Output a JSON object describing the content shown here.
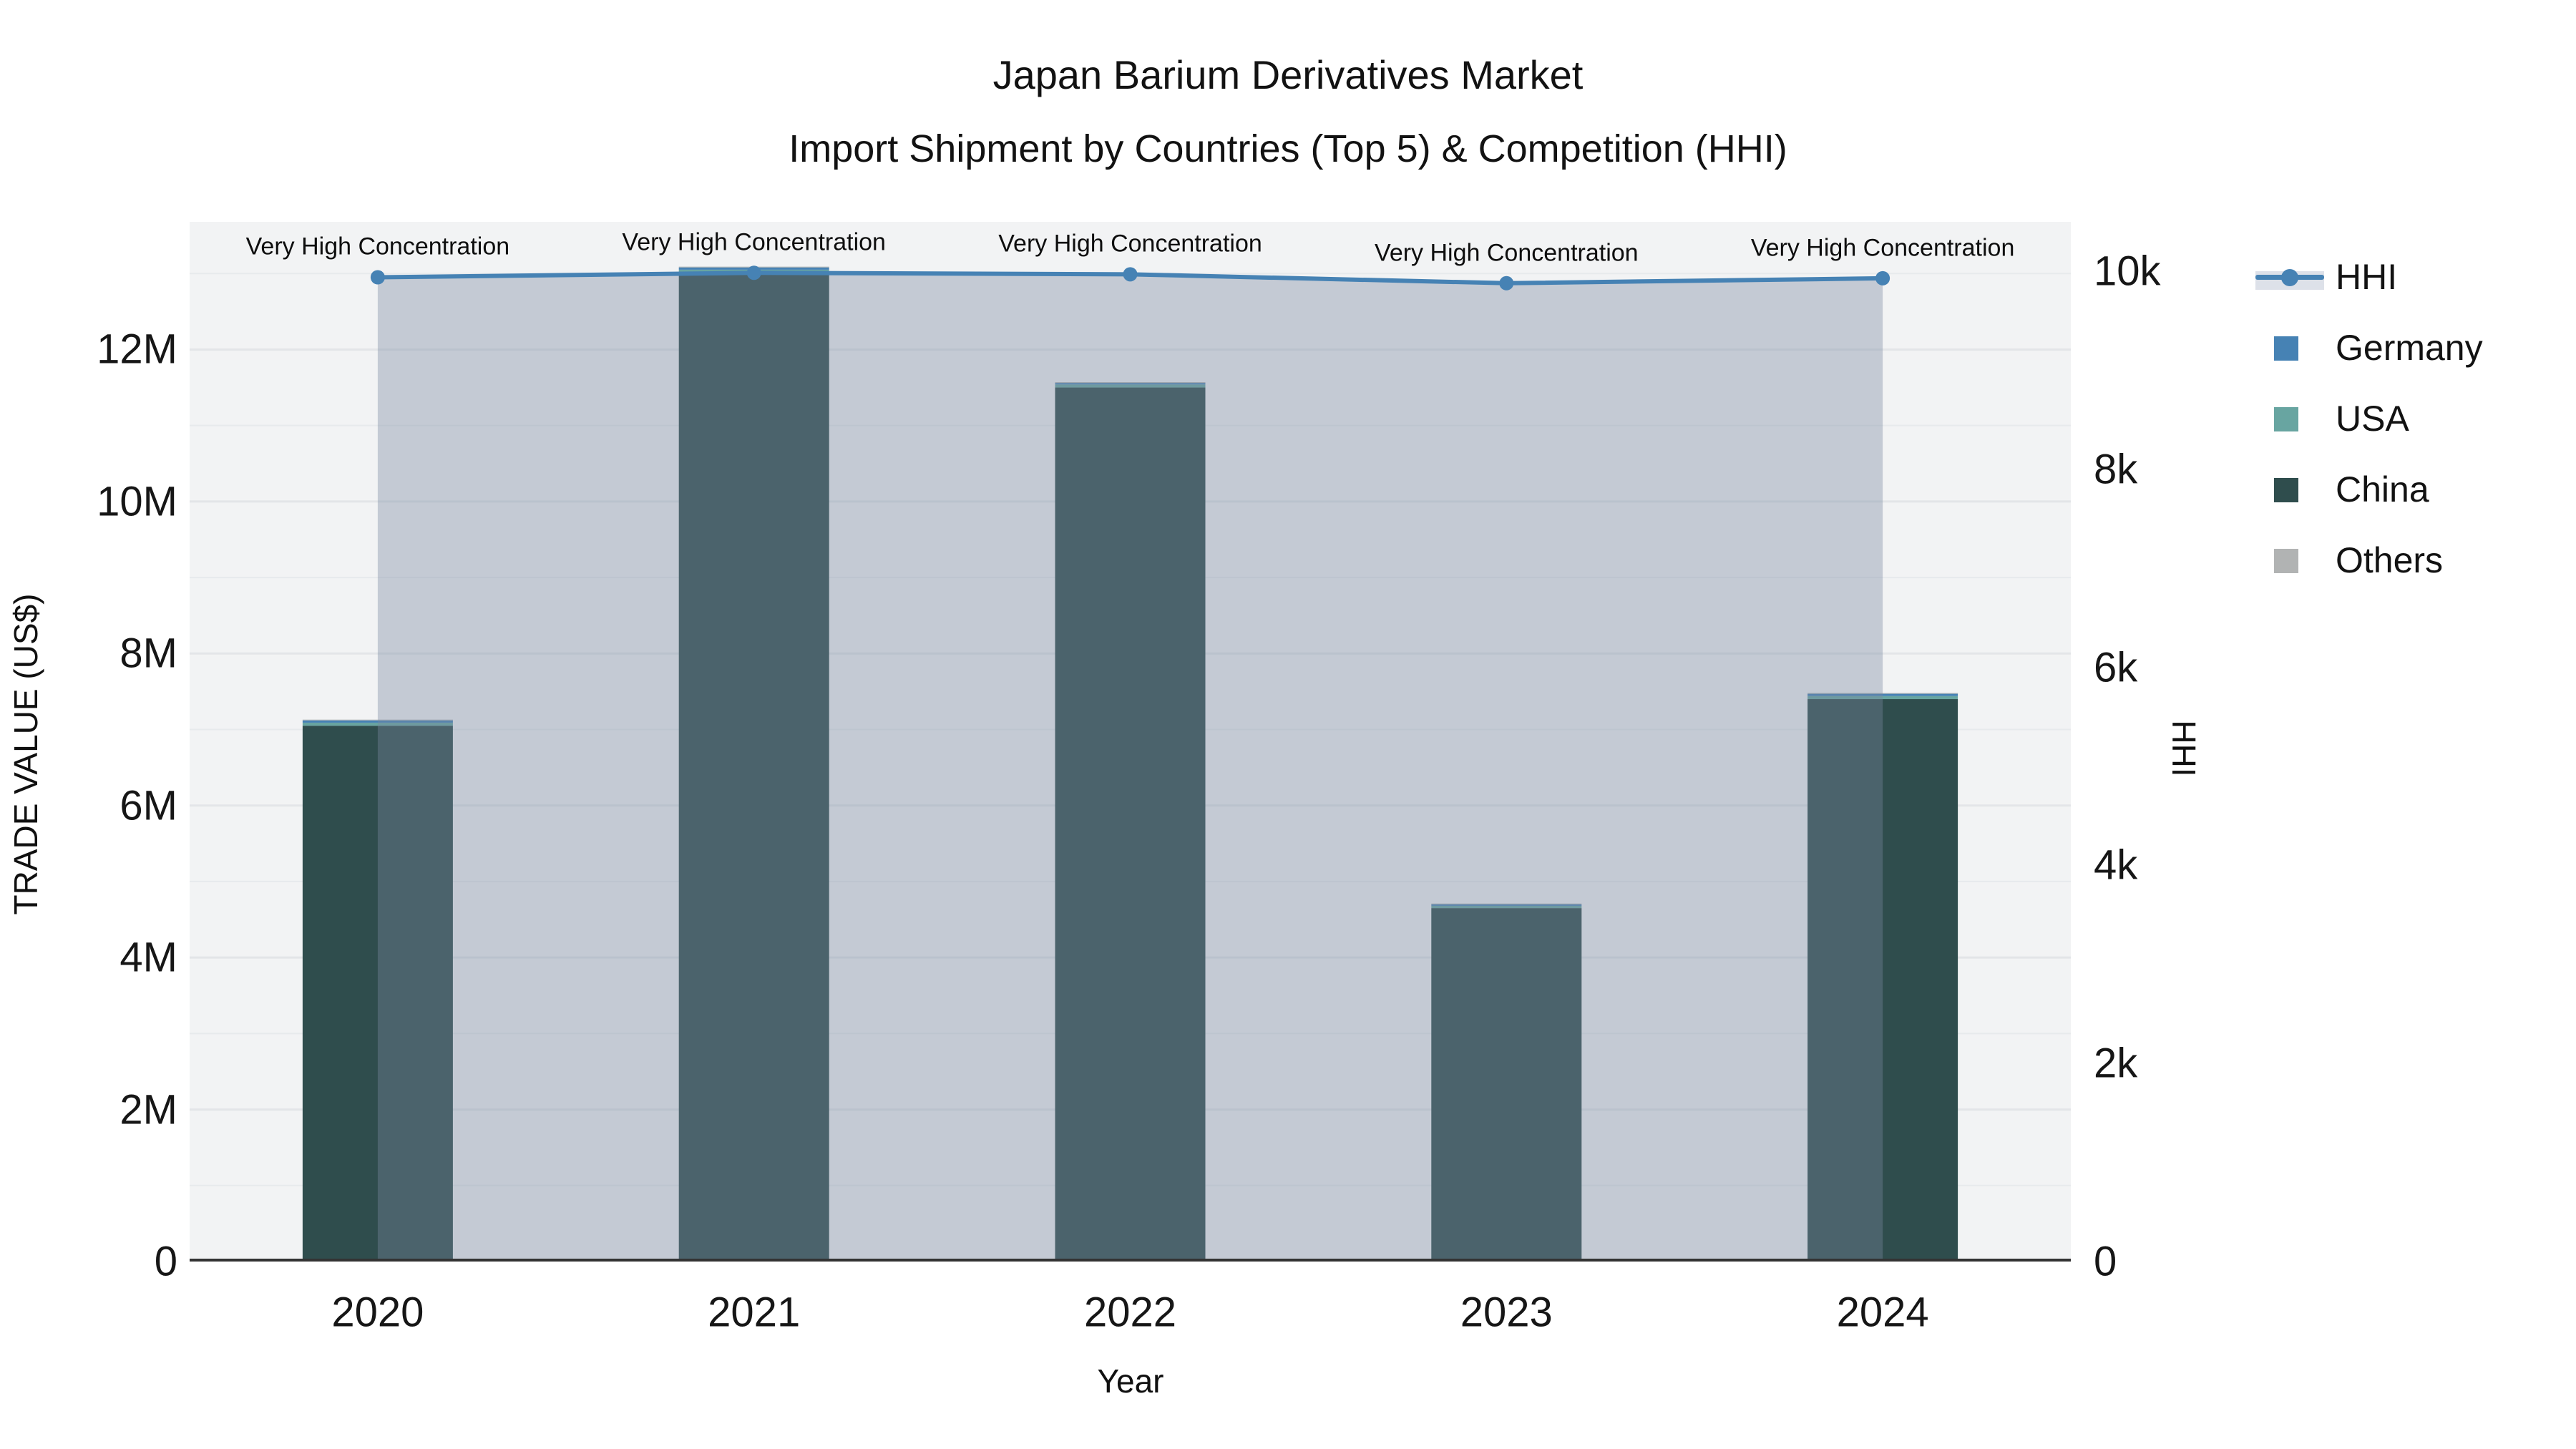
{
  "title": {
    "line1": "Japan Barium Derivatives Market",
    "line2": "Import Shipment by Countries (Top 5) & Competition (HHI)"
  },
  "axes": {
    "x": {
      "title": "Year"
    },
    "y_left": {
      "title": "TRADE VALUE (US$)",
      "ticks": [
        {
          "v": 0,
          "label": "0"
        },
        {
          "v": 2,
          "label": "2M"
        },
        {
          "v": 4,
          "label": "4M"
        },
        {
          "v": 6,
          "label": "6M"
        },
        {
          "v": 8,
          "label": "8M"
        },
        {
          "v": 10,
          "label": "10M"
        },
        {
          "v": 12,
          "label": "12M"
        }
      ]
    },
    "y_right": {
      "title": "HHI",
      "ticks": [
        {
          "v": 0,
          "label": "0"
        },
        {
          "v": 2000,
          "label": "2k"
        },
        {
          "v": 4000,
          "label": "4k"
        },
        {
          "v": 6000,
          "label": "6k"
        },
        {
          "v": 8000,
          "label": "8k"
        },
        {
          "v": 10000,
          "label": "10k"
        }
      ]
    }
  },
  "legend": [
    {
      "label": "HHI",
      "type": "line",
      "color": "#4682b4"
    },
    {
      "label": "Germany",
      "type": "square",
      "color": "#4682b4"
    },
    {
      "label": "USA",
      "type": "square",
      "color": "#68a5a1"
    },
    {
      "label": "China",
      "type": "square",
      "color": "#2f4d4d"
    },
    {
      "label": "Others",
      "type": "square",
      "color": "#b1b3b3"
    }
  ],
  "chart_data": {
    "type": "bar+line",
    "bar_mode": "stack",
    "categories": [
      "2020",
      "2021",
      "2022",
      "2023",
      "2024"
    ],
    "unit_left": "US$ millions",
    "series": [
      {
        "name": "China",
        "color": "#2f4d4d",
        "values": [
          7.05,
          13.0,
          11.5,
          4.65,
          7.4
        ]
      },
      {
        "name": "USA",
        "color": "#68a5a1",
        "values": [
          0.04,
          0.05,
          0.04,
          0.03,
          0.04
        ]
      },
      {
        "name": "Germany",
        "color": "#4682b4",
        "values": [
          0.03,
          0.03,
          0.02,
          0.02,
          0.03
        ]
      },
      {
        "name": "Others",
        "color": "#b1b3b3",
        "values": [
          0.01,
          0.01,
          0.01,
          0.01,
          0.01
        ]
      }
    ],
    "line": {
      "name": "HHI",
      "color": "#4682b4",
      "axis": "right",
      "values": [
        9940,
        9985,
        9970,
        9880,
        9930
      ],
      "area_fill": "rgba(122,136,160,0.38)"
    },
    "annotations": [
      "Very High Concentration",
      "Very High Concentration",
      "Very High Concentration",
      "Very High Concentration",
      "Very High Concentration"
    ],
    "title": "Japan Barium Derivatives Market — Import Shipment by Countries (Top 5) & Competition (HHI)",
    "xlabel": "Year",
    "ylabel_left": "TRADE VALUE (US$)",
    "ylabel_right": "HHI",
    "ylim_left": [
      0,
      13.68
    ],
    "ylim_right": [
      0,
      10500
    ],
    "grid": true,
    "legend_position": "right",
    "plot_bg": "#f2f3f4",
    "gridline_color": "#e3e5e8",
    "axisline_color": "#333333"
  }
}
